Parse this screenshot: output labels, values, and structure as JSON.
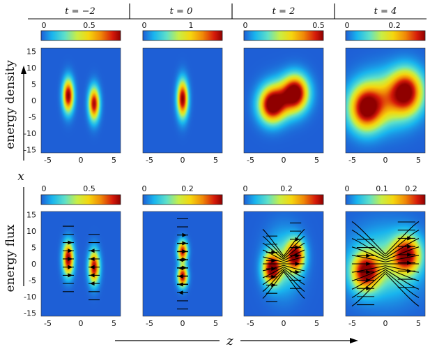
{
  "figure": {
    "columns": [
      {
        "label": "t = −2",
        "t_value": "−2",
        "density_colorbar_ticks": [
          "0",
          "0.5"
        ],
        "flux_colorbar_ticks": [
          "0",
          "0.5"
        ]
      },
      {
        "label": "t = 0",
        "t_value": "0",
        "density_colorbar_ticks": [
          "0",
          "1"
        ],
        "flux_colorbar_ticks": [
          "0",
          "0.2"
        ]
      },
      {
        "label": "t = 2",
        "t_value": "2",
        "density_colorbar_ticks": [
          "0",
          "0.5"
        ],
        "flux_colorbar_ticks": [
          "0",
          "0.2"
        ]
      },
      {
        "label": "t = 4",
        "t_value": "4",
        "density_colorbar_ticks": [
          "0",
          "0.2"
        ],
        "flux_colorbar_ticks": [
          "0",
          "0.1",
          "0.2"
        ]
      }
    ],
    "rows": [
      {
        "label": "energy density"
      },
      {
        "label": "energy flux"
      }
    ],
    "x_axis_label": "z",
    "y_axis_label": "x",
    "x_tick_labels": [
      "-5",
      "0",
      "5"
    ],
    "y_tick_labels": [
      "15",
      "10",
      "5",
      "0",
      "-5",
      "-10",
      "-15"
    ],
    "t_symbol": "t"
  },
  "chart_data": {
    "type": "heatmap",
    "title": "",
    "xlabel": "z",
    "ylabel": "x",
    "xlim": [
      -6,
      6
    ],
    "ylim": [
      -16,
      16
    ],
    "xticks": [
      -5,
      0,
      5
    ],
    "yticks": [
      15,
      10,
      5,
      0,
      -5,
      -10,
      -15
    ],
    "colormap": [
      "#1e5fd6",
      "#19b5ee",
      "#5fe0c8",
      "#c8ee46",
      "#f5d60e",
      "#f08a08",
      "#d61a0a",
      "#8f0000"
    ],
    "background_color": "#1e5fd6",
    "panels": [
      {
        "row": "energy density",
        "t": -2,
        "colorbar_ticks": [
          0,
          0.5
        ],
        "blobs": [
          {
            "z": -1.9,
            "x": 1.5,
            "sz": 0.55,
            "sx": 3.4,
            "amp": 1.0
          },
          {
            "z": 2.0,
            "x": -1.0,
            "sz": 0.55,
            "sx": 3.4,
            "amp": 0.95
          }
        ]
      },
      {
        "row": "energy density",
        "t": 0,
        "colorbar_ticks": [
          0,
          1
        ],
        "blobs": [
          {
            "z": 0.0,
            "x": 0.5,
            "sz": 0.55,
            "sx": 3.8,
            "amp": 1.0
          }
        ]
      },
      {
        "row": "energy density",
        "t": 2,
        "colorbar_ticks": [
          0,
          0.5
        ],
        "blobs": [
          {
            "z": -1.8,
            "x": -1.5,
            "sz": 1.3,
            "sx": 3.6,
            "amp": 0.95
          },
          {
            "z": 1.8,
            "x": 2.5,
            "sz": 1.3,
            "sx": 3.6,
            "amp": 0.95
          },
          {
            "z": 0.0,
            "x": 0.5,
            "sz": 1.9,
            "sx": 4.0,
            "amp": 0.45
          }
        ]
      },
      {
        "row": "energy density",
        "t": 4,
        "colorbar_ticks": [
          0,
          0.2
        ],
        "blobs": [
          {
            "z": -3.0,
            "x": -2.5,
            "sz": 1.7,
            "sx": 4.6,
            "amp": 0.9
          },
          {
            "z": 3.2,
            "x": 2.8,
            "sz": 1.7,
            "sx": 4.6,
            "amp": 0.9
          },
          {
            "z": 0.0,
            "x": 0.2,
            "sz": 2.8,
            "sx": 5.5,
            "amp": 0.5
          }
        ]
      },
      {
        "row": "energy flux",
        "t": -2,
        "colorbar_ticks": [
          0,
          0.5
        ],
        "blobs": [
          {
            "z": -1.9,
            "x": 1.5,
            "sz": 0.55,
            "sx": 3.4,
            "amp": 1.0
          },
          {
            "z": 2.0,
            "x": -1.0,
            "sz": 0.55,
            "sx": 3.4,
            "amp": 0.95
          }
        ]
      },
      {
        "row": "energy flux",
        "t": 0,
        "colorbar_ticks": [
          0,
          0.2
        ],
        "blobs": [
          {
            "z": 0.0,
            "x": 3.8,
            "sz": 0.5,
            "sx": 2.2,
            "amp": 0.9
          },
          {
            "z": 0.0,
            "x": -3.8,
            "sz": 0.5,
            "sx": 2.2,
            "amp": 0.95
          }
        ]
      },
      {
        "row": "energy flux",
        "t": 2,
        "colorbar_ticks": [
          0,
          0.2
        ],
        "blobs": [
          {
            "z": -1.8,
            "x": -1.5,
            "sz": 0.9,
            "sx": 3.2,
            "amp": 0.95
          },
          {
            "z": 1.8,
            "x": 2.5,
            "sz": 0.9,
            "sx": 3.2,
            "amp": 0.95
          },
          {
            "z": 0.0,
            "x": 0.5,
            "sz": 1.8,
            "sx": 6.5,
            "amp": 0.3
          }
        ]
      },
      {
        "row": "energy flux",
        "t": 4,
        "colorbar_ticks": [
          0,
          0.1,
          0.2
        ],
        "blobs": [
          {
            "z": -3.0,
            "x": -2.5,
            "sz": 1.4,
            "sx": 3.8,
            "amp": 0.9
          },
          {
            "z": 3.2,
            "x": 2.8,
            "sz": 1.4,
            "sx": 3.8,
            "amp": 0.9
          },
          {
            "z": 0.0,
            "x": 0.0,
            "sz": 3.5,
            "sx": 7.0,
            "amp": 0.35
          }
        ]
      }
    ]
  }
}
